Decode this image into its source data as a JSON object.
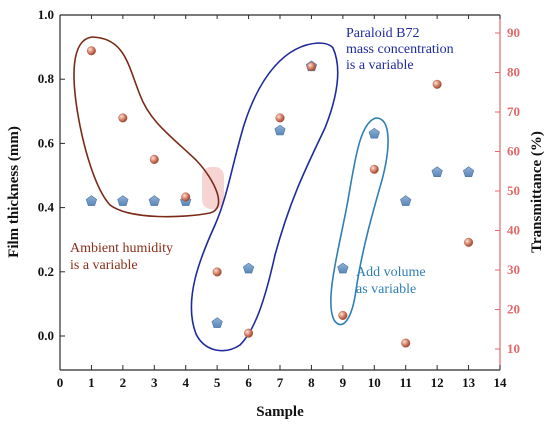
{
  "chart_data": {
    "type": "scatter",
    "xlabel": "Sample",
    "ylabel_left": "Film thickness (mm)",
    "ylabel_right": "Transmittance (%)",
    "xlim": [
      0,
      14
    ],
    "ylim_left": [
      -0.1,
      1.0
    ],
    "ylim_right": [
      5,
      95
    ],
    "x_ticks": [
      "0",
      "1",
      "2",
      "3",
      "4",
      "5",
      "6",
      "7",
      "8",
      "9",
      "10",
      "11",
      "12",
      "13",
      "14"
    ],
    "y_left_ticks": [
      "0.0",
      "0.2",
      "0.4",
      "0.6",
      "0.8",
      "1.0"
    ],
    "y_right_ticks": [
      "10",
      "20",
      "30",
      "40",
      "50",
      "60",
      "70",
      "80",
      "90"
    ],
    "colors": {
      "left_axis": "#2b2b2b",
      "right_axis": "#e06a6a",
      "thickness_marker": "#6f98c4",
      "transmittance_marker": "#d8836a",
      "humidity_outline": "#7a2a17",
      "b72_outline": "#1f2b9c",
      "volume_outline": "#2f7fb5",
      "highlight": "#f4c6c6"
    },
    "series": [
      {
        "axis": "left",
        "marker": "pentagon",
        "x": [
          1,
          2,
          3,
          4,
          5,
          6,
          7,
          8,
          9,
          10,
          11,
          12,
          13
        ],
        "values": [
          0.42,
          0.42,
          0.42,
          0.42,
          0.04,
          0.21,
          0.64,
          0.84,
          0.21,
          0.63,
          0.42,
          0.51,
          0.51
        ]
      },
      {
        "axis": "right",
        "marker": "sphere",
        "x": [
          1,
          2,
          3,
          4,
          5,
          6,
          7,
          8,
          9,
          10,
          11,
          12,
          13
        ],
        "values": [
          85.5,
          68.5,
          58,
          48.5,
          29.5,
          14,
          68.5,
          81.5,
          18.5,
          55.5,
          11.5,
          77,
          37
        ]
      }
    ],
    "annotations": {
      "humidity": "Ambient humidity\nis a variable",
      "b72": "Paraloid B72\nmass concentration\nis a variable",
      "volume": "Add volume\nas variable"
    }
  }
}
